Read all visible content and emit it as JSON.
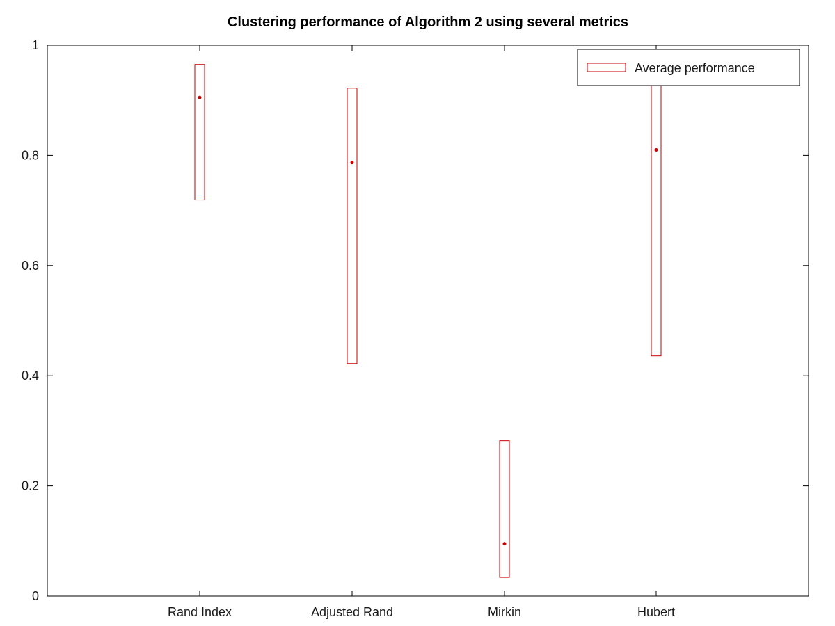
{
  "chart_data": {
    "type": "errorbar-box",
    "title": "Clustering performance of Algorithm 2 using several metrics",
    "xlabel": "",
    "ylabel": "",
    "categories": [
      "Rand Index",
      "Adjusted Rand",
      "Mirkin",
      "Hubert"
    ],
    "ylim": [
      0,
      1
    ],
    "yticks": [
      "0",
      "0.2",
      "0.4",
      "0.6",
      "0.8",
      "1"
    ],
    "ytick_values": [
      0,
      0.2,
      0.4,
      0.6,
      0.8,
      1
    ],
    "series": [
      {
        "name": "Average performance",
        "color": "#cc0000",
        "mean": [
          0.905,
          0.787,
          0.095,
          0.81
        ],
        "low": [
          0.719,
          0.422,
          0.034,
          0.436
        ],
        "high": [
          0.965,
          0.922,
          0.282,
          0.931
        ]
      }
    ],
    "grid": false,
    "legend_position": "top-right"
  }
}
